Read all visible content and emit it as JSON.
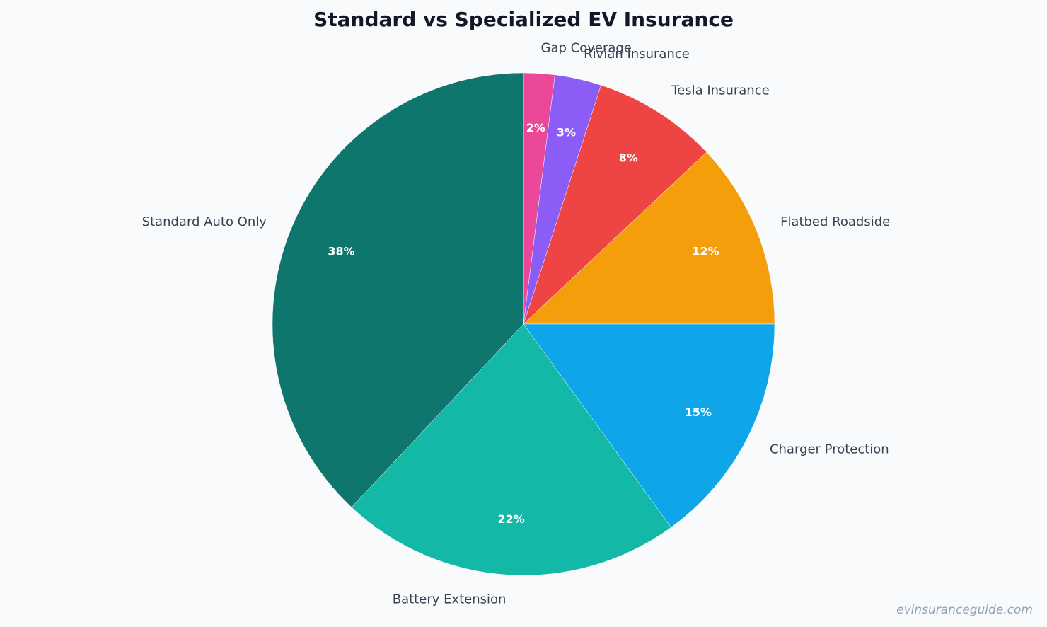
{
  "chart_data": {
    "type": "pie",
    "title": "Standard vs Specialized EV Insurance",
    "start_angle_deg": 90,
    "direction": "clockwise",
    "series": [
      {
        "label": "Gap Coverage",
        "value": 2,
        "display": "2%",
        "color": "#ec4899"
      },
      {
        "label": "Rivian Insurance",
        "value": 3,
        "display": "3%",
        "color": "#8b5cf6"
      },
      {
        "label": "Tesla Insurance",
        "value": 8,
        "display": "8%",
        "color": "#ef4444"
      },
      {
        "label": "Flatbed Roadside",
        "value": 12,
        "display": "12%",
        "color": "#f59e0b"
      },
      {
        "label": "Charger Protection",
        "value": 15,
        "display": "15%",
        "color": "#0ea5e9"
      },
      {
        "label": "Battery Extension",
        "value": 22,
        "display": "22%",
        "color": "#14b8a6"
      },
      {
        "label": "Standard Auto Only",
        "value": 38,
        "display": "38%",
        "color": "#0f766e"
      }
    ]
  },
  "watermark": "evinsuranceguide.com"
}
